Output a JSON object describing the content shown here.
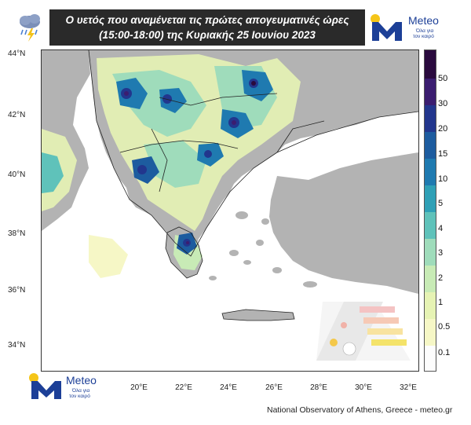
{
  "header": {
    "title_line1": "Ο υετός που αναμένεται τις πρώτες απογευματινές ώρες",
    "title_line2": "(15:00-18:00) της Κυριακής 25 Ιουνίου 2023"
  },
  "brand": {
    "name": "Meteo",
    "tagline_line1": "Όλα για",
    "tagline_line2": "τον καιρό"
  },
  "map": {
    "lat_labels": [
      "44°N",
      "42°N",
      "40°N",
      "38°N",
      "36°N",
      "34°N"
    ],
    "lon_labels": [
      "20°E",
      "22°E",
      "24°E",
      "26°E",
      "28°E",
      "30°E",
      "32°E"
    ],
    "colors": {
      "sea": "#ffffff",
      "land": "#b3b3b3",
      "border": "#222222"
    }
  },
  "legend": {
    "labels": [
      "50",
      "30",
      "20",
      "15",
      "10",
      "5",
      "4",
      "3",
      "2",
      "1",
      "0.5",
      "0.1"
    ],
    "colors": [
      "#fdfdfd",
      "#f6f7c6",
      "#e6f3b4",
      "#c8ebb6",
      "#9fdcbb",
      "#5fc2ba",
      "#2fa0b6",
      "#1f7ab0",
      "#1d5c9f",
      "#22368d",
      "#3b1d70",
      "#2a0a3e"
    ]
  },
  "footer": {
    "credit": "National Observatory of Athens, Greece - meteo.gr"
  }
}
